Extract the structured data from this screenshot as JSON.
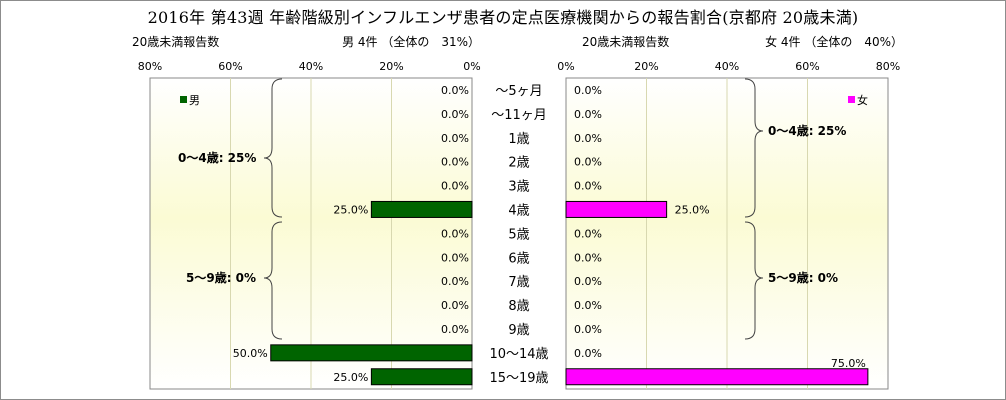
{
  "title": "2016年 第43週 年齢階級別インフルエンザ患者の定点医療機関からの報告割合(京都府 20歳未満)",
  "left_panel": {
    "header_left": "20歳未満報告数",
    "header_right": "男 4件 （全体の　31%）",
    "legend": "男",
    "color": "#006400",
    "group_labels": [
      "0～4歳: 25%",
      "5～9歳: 0%"
    ]
  },
  "right_panel": {
    "header_left": "20歳未満報告数",
    "header_right": "女 4件 （全体の　40%）",
    "legend": "女",
    "color": "#ff00ff",
    "group_labels": [
      "0～4歳: 25%",
      "5～9歳: 0%"
    ]
  },
  "chart_data": {
    "type": "bar",
    "categories": [
      "～5ヶ月",
      "～11ヶ月",
      "1歳",
      "2歳",
      "3歳",
      "4歳",
      "5歳",
      "6歳",
      "7歳",
      "8歳",
      "9歳",
      "10～14歳",
      "15～19歳"
    ],
    "series": [
      {
        "name": "男",
        "values": [
          0,
          0,
          0,
          0,
          0,
          25,
          0,
          0,
          0,
          0,
          0,
          50,
          25
        ]
      },
      {
        "name": "女",
        "values": [
          0,
          0,
          0,
          0,
          0,
          25,
          0,
          0,
          0,
          0,
          0,
          0,
          75
        ]
      }
    ],
    "value_labels": {
      "男": [
        "0.0%",
        "0.0%",
        "0.0%",
        "0.0%",
        "0.0%",
        "25.0%",
        "0.0%",
        "0.0%",
        "0.0%",
        "0.0%",
        "0.0%",
        "50.0%",
        "25.0%"
      ],
      "女": [
        "0.0%",
        "0.0%",
        "0.0%",
        "0.0%",
        "0.0%",
        "25.0%",
        "0.0%",
        "0.0%",
        "0.0%",
        "0.0%",
        "0.0%",
        "0.0%",
        "75.0%"
      ]
    },
    "x_ticks_left": [
      "80%",
      "60%",
      "40%",
      "20%",
      "0%"
    ],
    "x_ticks_right": [
      "0%",
      "20%",
      "40%",
      "60%",
      "80%"
    ],
    "xlim": [
      0,
      80
    ],
    "grid": true,
    "legend_placement": {
      "left": "top-left",
      "right": "top-right"
    }
  }
}
